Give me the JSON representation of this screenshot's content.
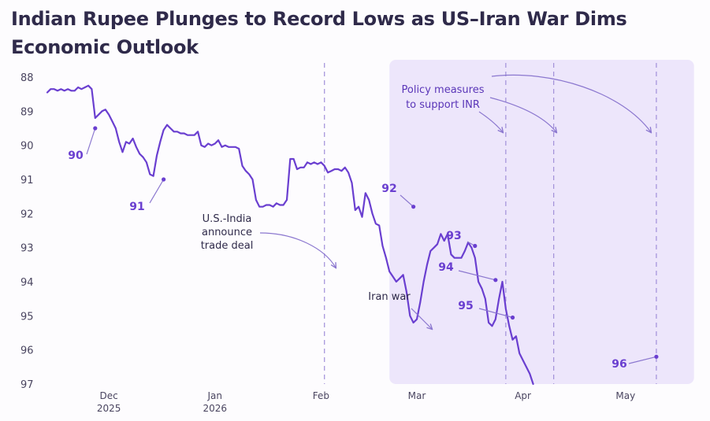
{
  "chart_data": {
    "type": "line",
    "title": "Indian Rupee Plunges to Record Lows as US–Iran War Dims Economic Outlook",
    "y_axis": {
      "inverted": true,
      "ylim": [
        88,
        97
      ],
      "ticks": [
        "88",
        "89",
        "90",
        "91",
        "92",
        "93",
        "94",
        "95",
        "96",
        "97"
      ],
      "grid": false
    },
    "x_axis": {
      "xlim": [
        "2025-11-13",
        "2026-05-19"
      ],
      "ticks": [
        {
          "label": "Dec",
          "sub": "2025",
          "date": "2025-12-01"
        },
        {
          "label": "Jan",
          "sub": "2026",
          "date": "2026-01-01"
        },
        {
          "label": "Feb",
          "sub": "",
          "date": "2026-02-01"
        },
        {
          "label": "Mar",
          "sub": "",
          "date": "2026-03-01"
        },
        {
          "label": "Apr",
          "sub": "",
          "date": "2026-04-01"
        },
        {
          "label": "May",
          "sub": "",
          "date": "2026-05-01"
        }
      ]
    },
    "colors": {
      "line": "#6a3fd0",
      "shade": "#ede6fb",
      "dashed": "#a18fd9",
      "arrow": "#8b77cf"
    },
    "shaded_region": {
      "label": "Iran war",
      "start": "2026-02-21",
      "end": "2026-05-21"
    },
    "vlines": [
      {
        "date": "2026-02-02",
        "label": "U.S.-India announce trade deal"
      },
      {
        "date": "2026-03-27",
        "label": "Policy measures to support INR"
      },
      {
        "date": "2026-04-10"
      },
      {
        "date": "2026-05-10"
      }
    ],
    "milestones": [
      {
        "label": "90",
        "date": "2025-11-27",
        "value": 89.5
      },
      {
        "label": "91",
        "date": "2025-12-17",
        "value": 91.0
      },
      {
        "label": "92",
        "date": "2026-02-28",
        "value": 91.8
      },
      {
        "label": "93",
        "date": "2026-03-18",
        "value": 92.95
      },
      {
        "label": "94",
        "date": "2026-03-24",
        "value": 93.95
      },
      {
        "label": "95",
        "date": "2026-03-29",
        "value": 95.05
      },
      {
        "label": "96",
        "date": "2026-05-10",
        "value": 96.2
      }
    ],
    "labels": {
      "trade_deal": [
        "U.S.-India",
        "announce",
        "trade deal"
      ],
      "policy": [
        "Policy measures",
        "to support INR"
      ]
    },
    "series": [
      {
        "points": [
          [
            "2025-11-13",
            88.45
          ],
          [
            "2025-11-14",
            88.35
          ],
          [
            "2025-11-15",
            88.35
          ],
          [
            "2025-11-16",
            88.4
          ],
          [
            "2025-11-17",
            88.35
          ],
          [
            "2025-11-18",
            88.4
          ],
          [
            "2025-11-19",
            88.35
          ],
          [
            "2025-11-20",
            88.4
          ],
          [
            "2025-11-21",
            88.4
          ],
          [
            "2025-11-22",
            88.3
          ],
          [
            "2025-11-23",
            88.35
          ],
          [
            "2025-11-24",
            88.3
          ],
          [
            "2025-11-25",
            88.25
          ],
          [
            "2025-11-26",
            88.35
          ],
          [
            "2025-11-27",
            89.2
          ],
          [
            "2025-11-28",
            89.1
          ],
          [
            "2025-11-29",
            89.0
          ],
          [
            "2025-11-30",
            88.95
          ],
          [
            "2025-12-01",
            89.1
          ],
          [
            "2025-12-02",
            89.3
          ],
          [
            "2025-12-03",
            89.5
          ],
          [
            "2025-12-04",
            89.9
          ],
          [
            "2025-12-05",
            90.2
          ],
          [
            "2025-12-06",
            89.9
          ],
          [
            "2025-12-07",
            89.95
          ],
          [
            "2025-12-08",
            89.8
          ],
          [
            "2025-12-09",
            90.05
          ],
          [
            "2025-12-10",
            90.25
          ],
          [
            "2025-12-11",
            90.35
          ],
          [
            "2025-12-12",
            90.5
          ],
          [
            "2025-12-13",
            90.85
          ],
          [
            "2025-12-14",
            90.9
          ],
          [
            "2025-12-15",
            90.3
          ],
          [
            "2025-12-16",
            89.9
          ],
          [
            "2025-12-17",
            89.55
          ],
          [
            "2025-12-18",
            89.4
          ],
          [
            "2025-12-19",
            89.5
          ],
          [
            "2025-12-20",
            89.6
          ],
          [
            "2025-12-21",
            89.6
          ],
          [
            "2025-12-22",
            89.65
          ],
          [
            "2025-12-23",
            89.65
          ],
          [
            "2025-12-24",
            89.7
          ],
          [
            "2025-12-25",
            89.7
          ],
          [
            "2025-12-26",
            89.7
          ],
          [
            "2025-12-27",
            89.6
          ],
          [
            "2025-12-28",
            90.0
          ],
          [
            "2025-12-29",
            90.05
          ],
          [
            "2025-12-30",
            89.95
          ],
          [
            "2025-12-31",
            90.0
          ],
          [
            "2026-01-01",
            89.95
          ],
          [
            "2026-01-02",
            89.85
          ],
          [
            "2026-01-03",
            90.05
          ],
          [
            "2026-01-04",
            90.0
          ],
          [
            "2026-01-05",
            90.05
          ],
          [
            "2026-01-06",
            90.05
          ],
          [
            "2026-01-07",
            90.05
          ],
          [
            "2026-01-08",
            90.1
          ],
          [
            "2026-01-09",
            90.6
          ],
          [
            "2026-01-10",
            90.75
          ],
          [
            "2026-01-11",
            90.85
          ],
          [
            "2026-01-12",
            91.0
          ],
          [
            "2026-01-13",
            91.6
          ],
          [
            "2026-01-14",
            91.8
          ],
          [
            "2026-01-15",
            91.8
          ],
          [
            "2026-01-16",
            91.75
          ],
          [
            "2026-01-17",
            91.75
          ],
          [
            "2026-01-18",
            91.8
          ],
          [
            "2026-01-19",
            91.7
          ],
          [
            "2026-01-20",
            91.75
          ],
          [
            "2026-01-21",
            91.75
          ],
          [
            "2026-01-22",
            91.6
          ],
          [
            "2026-01-23",
            90.4
          ],
          [
            "2026-01-24",
            90.4
          ],
          [
            "2026-01-25",
            90.7
          ],
          [
            "2026-01-26",
            90.65
          ],
          [
            "2026-01-27",
            90.65
          ],
          [
            "2026-01-28",
            90.5
          ],
          [
            "2026-01-29",
            90.55
          ],
          [
            "2026-01-30",
            90.5
          ],
          [
            "2026-01-31",
            90.55
          ],
          [
            "2026-02-01",
            90.5
          ],
          [
            "2026-02-02",
            90.6
          ],
          [
            "2026-02-03",
            90.8
          ],
          [
            "2026-02-04",
            90.75
          ],
          [
            "2026-02-05",
            90.7
          ],
          [
            "2026-02-06",
            90.7
          ],
          [
            "2026-02-07",
            90.75
          ],
          [
            "2026-02-08",
            90.65
          ],
          [
            "2026-02-09",
            90.8
          ],
          [
            "2026-02-10",
            91.1
          ],
          [
            "2026-02-11",
            91.9
          ],
          [
            "2026-02-12",
            91.8
          ],
          [
            "2026-02-13",
            92.1
          ],
          [
            "2026-02-14",
            91.4
          ],
          [
            "2026-02-15",
            91.6
          ],
          [
            "2026-02-16",
            92.0
          ],
          [
            "2026-02-17",
            92.3
          ],
          [
            "2026-02-18",
            92.35
          ],
          [
            "2026-02-19",
            92.95
          ],
          [
            "2026-02-20",
            93.3
          ],
          [
            "2026-02-21",
            93.7
          ],
          [
            "2026-02-22",
            93.85
          ],
          [
            "2026-02-23",
            94.0
          ],
          [
            "2026-02-24",
            93.9
          ],
          [
            "2026-02-25",
            93.8
          ],
          [
            "2026-02-26",
            94.3
          ],
          [
            "2026-02-27",
            95.0
          ],
          [
            "2026-02-28",
            95.2
          ],
          [
            "2026-03-01",
            95.1
          ],
          [
            "2026-03-02",
            94.6
          ],
          [
            "2026-03-03",
            94.0
          ],
          [
            "2026-03-04",
            93.5
          ],
          [
            "2026-03-05",
            93.1
          ],
          [
            "2026-03-06",
            93.0
          ],
          [
            "2026-03-07",
            92.9
          ],
          [
            "2026-03-08",
            92.6
          ],
          [
            "2026-03-09",
            92.8
          ],
          [
            "2026-03-10",
            92.6
          ],
          [
            "2026-03-11",
            93.2
          ],
          [
            "2026-03-12",
            93.3
          ],
          [
            "2026-03-13",
            93.3
          ],
          [
            "2026-03-14",
            93.3
          ],
          [
            "2026-03-15",
            93.1
          ],
          [
            "2026-03-16",
            92.85
          ],
          [
            "2026-03-17",
            93.0
          ],
          [
            "2026-03-18",
            93.3
          ],
          [
            "2026-03-19",
            94.0
          ],
          [
            "2026-03-20",
            94.2
          ],
          [
            "2026-03-21",
            94.5
          ],
          [
            "2026-03-22",
            95.2
          ],
          [
            "2026-03-23",
            95.3
          ],
          [
            "2026-03-24",
            95.1
          ],
          [
            "2026-03-25",
            94.5
          ],
          [
            "2026-03-26",
            94.0
          ],
          [
            "2026-03-27",
            94.8
          ],
          [
            "2026-03-28",
            95.3
          ],
          [
            "2026-03-29",
            95.7
          ],
          [
            "2026-03-30",
            95.6
          ],
          [
            "2026-03-31",
            96.1
          ],
          [
            "2026-04-01",
            96.3
          ],
          [
            "2026-04-02",
            96.5
          ],
          [
            "2026-04-03",
            96.7
          ],
          [
            "2026-04-04",
            97.0
          ]
        ]
      }
    ]
  }
}
